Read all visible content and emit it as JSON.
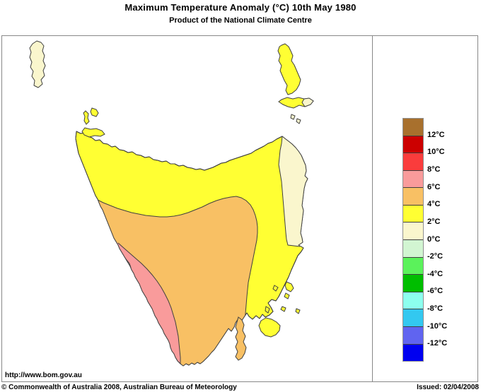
{
  "header": {
    "title": "Maximum Temperature Anomaly (°C)  10th May 1980",
    "subtitle": "Product of the National Climate Centre"
  },
  "legend": {
    "labels": [
      "12°C",
      "10°C",
      "8°C",
      "6°C",
      "4°C",
      "2°C",
      "0°C",
      "-2°C",
      "-4°C",
      "-6°C",
      "-8°C",
      "-10°C",
      "-12°C"
    ],
    "colors": [
      "#A8702D",
      "#CC0000",
      "#FA3C3C",
      "#F99B9B",
      "#F8C064",
      "#FFFF33",
      "#FAF6CD",
      "#D2F5D2",
      "#5BF25B",
      "#00BE00",
      "#8CFFEE",
      "#33C8F0",
      "#6064F0",
      "#0000F0"
    ]
  },
  "map": {
    "region": "Tasmania",
    "colors": {
      "band_2_4": "#FFFF33",
      "band_4_6": "#F8C064",
      "band_6_8": "#F99B9B",
      "band_0_2": "#FAF6CD",
      "water": "#FFFFFF",
      "coastline": "#404040"
    }
  },
  "footer": {
    "url": "http://www.bom.gov.au",
    "copyright": "© Commonwealth of Australia 2008, Australian Bureau of Meteorology",
    "issued": "Issued: 02/04/2008"
  }
}
